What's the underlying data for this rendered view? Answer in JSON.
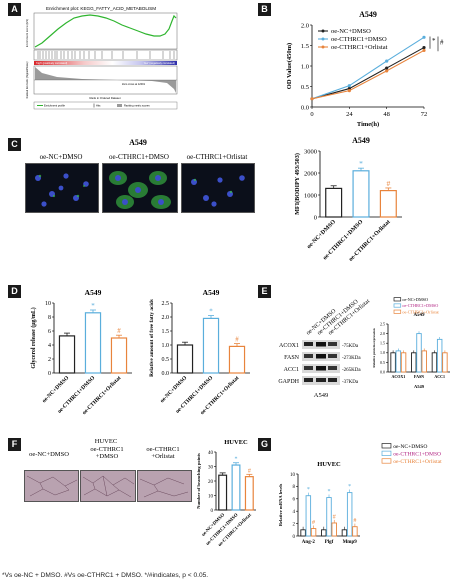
{
  "panel_labels": {
    "a": "A",
    "b": "B",
    "c": "C",
    "d": "D",
    "e": "E",
    "f": "F",
    "g": "G"
  },
  "gsea": {
    "title": "Enrichment plot: KEGG_FATTY_ACID_METABOLISM",
    "y1": "Enrichment score (ES)",
    "y2": "Ranked list metric (Signal2Noise)",
    "x": "Rank in Ordered Dataset",
    "zero_cross": "Zero cross at 12001",
    "legend": [
      "Enrichment profile",
      "Hits",
      "Ranking metric scores"
    ],
    "high_label": "'high' (positively correlated)",
    "low_label": "'low' (negatively correlated)"
  },
  "cell_titles": {
    "a549_c_micro": "A549",
    "a549_c_bar": "A549",
    "a549_d1": "A549",
    "a549_d2": "A549",
    "huvec_f_bar": "HUVEC",
    "huvec_g": "HUVEC",
    "huvec_f_img": "HUVEC",
    "a549_e_blot": "A549",
    "a549_e_bar": "A549"
  },
  "micro_labels": {
    "c": [
      "oe-NC+DMSO",
      "oe-CTHRC1+DMSO",
      "oe-CTHRC1+Orlistat"
    ],
    "f": [
      "oe-NC+DMSO",
      "oe-CTHRC1\n+DMSO",
      "oe-CTHRC1\n+Orlistat"
    ]
  },
  "groups": [
    "oe-NC+DMSO",
    "oe-CTHRC1+DMSO",
    "oe-CTHRC1+Orlistat"
  ],
  "colors": {
    "nc": "#222222",
    "cthrc1": "#5aaedc",
    "orlistat": "#e8843c",
    "cthrc1_dark": "#b02080",
    "star": "#5aaedc",
    "hash": "#e8843c"
  },
  "blot": {
    "proteins": [
      "ACOX1",
      "FASN",
      "ACC1",
      "GAPDH"
    ],
    "kda": [
      "-75KDa",
      "-273KDa",
      "-265KDa",
      "-37KDa"
    ]
  },
  "caption": "*Vs oe-NC + DMSO. #Vs oe-CTHRC1 + DMSO. */#indicates, p < 0.05.",
  "chart_data": [
    {
      "id": "B",
      "type": "line",
      "title": "A549",
      "xlabel": "Time(h)",
      "ylabel": "OD Value(450m)",
      "x": [
        0,
        24,
        48,
        72
      ],
      "xlim": [
        0,
        72
      ],
      "ylim": [
        0,
        2.0
      ],
      "yticks": [
        "0.0",
        "0.5",
        "1.0",
        "1.5",
        "2.0"
      ],
      "series": [
        {
          "name": "oe-NC+DMSO",
          "values": [
            0.2,
            0.45,
            0.95,
            1.45
          ]
        },
        {
          "name": "oe-CTHRC1+DMSO",
          "values": [
            0.2,
            0.52,
            1.12,
            1.7
          ]
        },
        {
          "name": "oe-CTHRC1+Orlistat",
          "values": [
            0.2,
            0.4,
            0.88,
            1.38
          ]
        }
      ],
      "annotations": [
        "*",
        "#"
      ]
    },
    {
      "id": "C",
      "type": "bar",
      "title": "A549",
      "ylabel": "MFI(BODIPY 493/503)",
      "ylim": [
        0,
        3000
      ],
      "yticks": [
        "0",
        "1000",
        "2000",
        "3000"
      ],
      "categories": [
        "oe-NC+DMSO",
        "oe-CTHRC1+DMSO",
        "oe-CTHRC1+Orlistat"
      ],
      "values": [
        1300,
        2100,
        1200
      ],
      "marks": [
        "",
        "*",
        "#"
      ]
    },
    {
      "id": "D1",
      "type": "bar",
      "title": "A549",
      "ylabel": "Glycerol release (μg/mL)",
      "ylim": [
        0,
        10
      ],
      "yticks": [
        "0",
        "2",
        "4",
        "6",
        "8",
        "10"
      ],
      "categories": [
        "oe-NC+DMSO",
        "oe-CTHRC1+DMSO",
        "oe-CTHRC1+Orlistat"
      ],
      "values": [
        5.3,
        8.6,
        5.0
      ],
      "marks": [
        "",
        "*",
        "#"
      ]
    },
    {
      "id": "D2",
      "type": "bar",
      "title": "A549",
      "ylabel": "Relative amount of free fatty acids",
      "ylim": [
        0,
        2.5
      ],
      "yticks": [
        "0.0",
        "0.5",
        "1.0",
        "1.5",
        "2.0",
        "2.5"
      ],
      "categories": [
        "oe-NC+DMSO",
        "oe-CTHRC1+DMSO",
        "oe-CTHRC1+Orlistat"
      ],
      "values": [
        1.0,
        1.95,
        0.95
      ],
      "marks": [
        "",
        "*",
        "#"
      ]
    },
    {
      "id": "E",
      "type": "bar",
      "title": "A549",
      "ylabel": "Relative protein expression",
      "ylim": [
        0,
        2.5
      ],
      "yticks": [
        "0.0",
        "0.5",
        "1.0",
        "1.5",
        "2.0",
        "2.5"
      ],
      "categories": [
        "ACOX1",
        "FASN",
        "ACC1"
      ],
      "series": [
        {
          "name": "oe-NC+DMSO",
          "values": [
            1.0,
            1.0,
            1.0
          ]
        },
        {
          "name": "oe-CTHRC1+DMSO",
          "values": [
            1.1,
            2.0,
            1.7
          ]
        },
        {
          "name": "oe-CTHRC1+Orlistat",
          "values": [
            1.0,
            1.1,
            1.0
          ]
        }
      ]
    },
    {
      "id": "F",
      "type": "bar",
      "title": "HUVEC",
      "ylabel": "Number of branching points",
      "ylim": [
        0,
        40
      ],
      "yticks": [
        "0",
        "10",
        "20",
        "30",
        "40"
      ],
      "categories": [
        "oe-NC+DMSO",
        "oe-CTHRC1+DMSO",
        "oe-CTHRC1+Orlistat"
      ],
      "values": [
        24,
        31,
        23
      ],
      "marks": [
        "",
        "*",
        "#"
      ]
    },
    {
      "id": "G",
      "type": "bar",
      "title": "HUVEC",
      "ylabel": "Relative mRNA levels",
      "ylim": [
        0,
        10
      ],
      "yticks": [
        "0",
        "2",
        "4",
        "6",
        "8",
        "10"
      ],
      "categories": [
        "Ang-2",
        "Plgf",
        "Mmp9"
      ],
      "series": [
        {
          "name": "oe-NC+DMSO",
          "values": [
            1.0,
            1.0,
            1.0
          ]
        },
        {
          "name": "oe-CTHRC1+DMSO",
          "values": [
            6.5,
            6.2,
            7.0
          ]
        },
        {
          "name": "oe-CTHRC1+Orlistat",
          "values": [
            1.2,
            2.1,
            1.5
          ]
        }
      ],
      "marks": [
        [
          "",
          "*",
          "#"
        ],
        [
          "",
          "*",
          "#"
        ],
        [
          "",
          "*",
          "#"
        ]
      ]
    }
  ]
}
